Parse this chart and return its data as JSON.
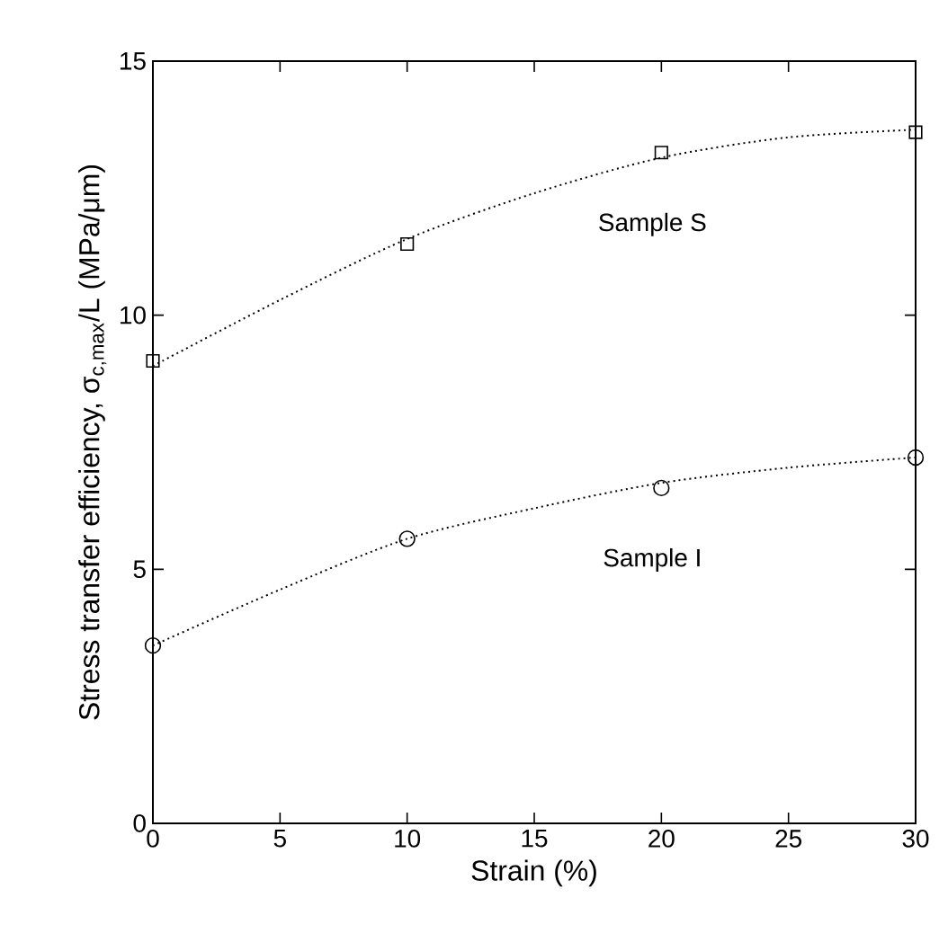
{
  "chart_data": {
    "type": "scatter",
    "xlabel": "Strain (%)",
    "ylabel": "Stress transfer efficiency, σ$_{c,max}$/L (MPa/μm)",
    "xlim": [
      0,
      30
    ],
    "ylim": [
      0,
      15
    ],
    "xticks": [
      0,
      5,
      10,
      15,
      20,
      25,
      30
    ],
    "yticks": [
      0,
      5,
      10,
      15
    ],
    "grid": false,
    "series": [
      {
        "name": "Sample S",
        "color": "#000000",
        "marker": "square",
        "x": [
          0,
          10,
          20,
          30
        ],
        "values": [
          9.1,
          11.4,
          13.2,
          13.6
        ]
      },
      {
        "name": "Sample I",
        "color": "#000000",
        "marker": "circle",
        "x": [
          0,
          10,
          20,
          30
        ],
        "values": [
          3.5,
          5.6,
          6.6,
          7.2
        ]
      },
      {
        "type": "line",
        "color": "#000000",
        "line_style": "dotted",
        "marker": "none",
        "x": [
          0,
          5,
          10,
          15,
          20,
          25,
          30
        ],
        "values": [
          9.0,
          10.3,
          11.5,
          12.4,
          13.1,
          13.5,
          13.65
        ]
      },
      {
        "type": "line",
        "color": "#000000",
        "line_style": "dotted",
        "marker": "none",
        "x": [
          0,
          5,
          10,
          15,
          20,
          25,
          30
        ],
        "values": [
          3.5,
          4.6,
          5.6,
          6.2,
          6.7,
          7.0,
          7.2
        ]
      }
    ]
  }
}
